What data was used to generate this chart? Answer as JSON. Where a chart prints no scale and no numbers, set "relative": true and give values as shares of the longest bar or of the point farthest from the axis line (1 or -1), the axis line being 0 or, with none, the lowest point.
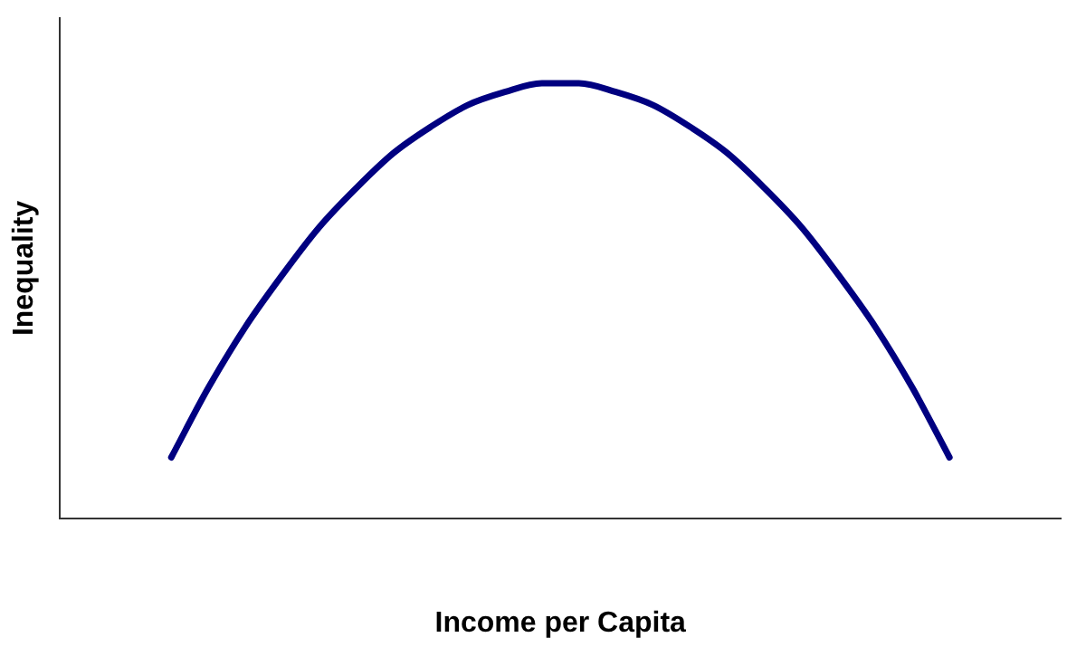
{
  "chart_data": {
    "type": "line",
    "relative": true,
    "xlabel": "Income per Capita",
    "ylabel": "Inequality",
    "categories": [
      null,
      null,
      null,
      null,
      null,
      null,
      null,
      null,
      null,
      null,
      null,
      null,
      null,
      null,
      null,
      null,
      null,
      null,
      null,
      null,
      null,
      null,
      null,
      null,
      null,
      null,
      null,
      null
    ],
    "series": [
      {
        "color": "#000080",
        "values": [
          null,
          null,
          null,
          0.14,
          0.3,
          0.44,
          0.56,
          0.67,
          0.76,
          0.84,
          0.9,
          0.95,
          0.98,
          1,
          1,
          0.98,
          0.95,
          0.9,
          0.84,
          0.76,
          0.67,
          0.56,
          0.44,
          0.3,
          0.14,
          null,
          null,
          null
        ]
      }
    ],
    "grid": false,
    "legend": false,
    "marker": "none",
    "line_style": "solid"
  }
}
